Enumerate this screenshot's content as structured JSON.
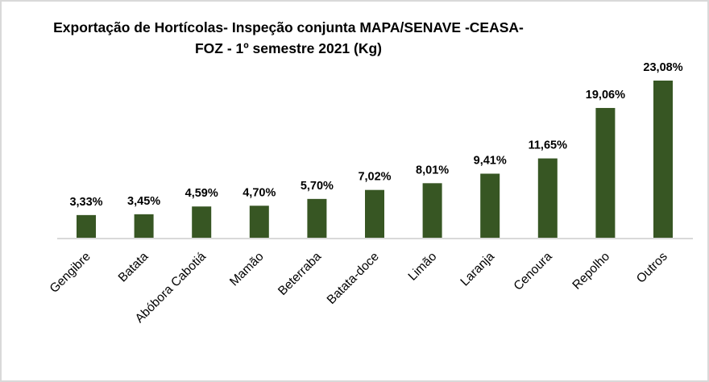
{
  "chart_data": {
    "type": "bar",
    "title_lines": [
      "Exportação de Hortícolas- Inspeção conjunta MAPA/SENAVE  -CEASA-",
      "FOZ - 1º semestre 2021 (Kg)"
    ],
    "categories": [
      "Gengibre",
      "Batata",
      "Abóbora Cabotiá",
      "Mamão",
      "Beterraba",
      "Batata-doce",
      "Limão",
      "Laranja",
      "Cenoura",
      "Repolho",
      "Outros"
    ],
    "values": [
      3.33,
      3.45,
      4.59,
      4.7,
      5.7,
      7.02,
      8.01,
      9.41,
      11.65,
      19.06,
      23.08
    ],
    "data_labels": [
      "3,33%",
      "3,45%",
      "4,59%",
      "4,70%",
      "5,70%",
      "7,02%",
      "8,01%",
      "9,41%",
      "11,65%",
      "19,06%",
      "23,08%"
    ],
    "unit": "%",
    "xlabel": "",
    "ylabel": "",
    "ylim": [
      0,
      23.08
    ],
    "grid": false,
    "legend": "none",
    "bar_color": "#375623",
    "axis_color": "#d9d9d9"
  }
}
